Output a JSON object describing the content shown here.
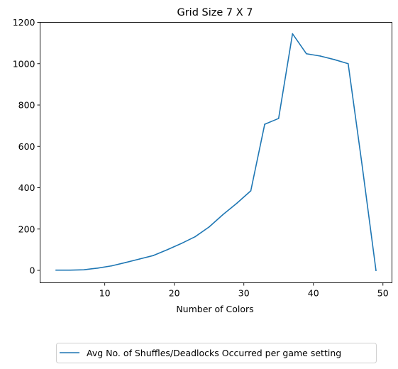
{
  "chart_data": {
    "type": "line",
    "title": "Grid Size 7 X 7",
    "xlabel": "Number of Colors",
    "ylabel": "",
    "xlim": [
      0.7,
      51.3
    ],
    "ylim": [
      -60,
      1200
    ],
    "xticks": [
      10,
      20,
      30,
      40,
      50
    ],
    "yticks": [
      0,
      200,
      400,
      600,
      800,
      1000,
      1200
    ],
    "grid": false,
    "legend_position": "bottom-center",
    "series": [
      {
        "name": "Avg No. of Shuffles/Deadlocks Occurred per game setting",
        "color": "#1f77b4",
        "x": [
          3,
          5,
          7,
          9,
          11,
          13,
          15,
          17,
          19,
          21,
          23,
          25,
          27,
          29,
          31,
          33,
          35,
          37,
          39,
          41,
          43,
          45,
          47,
          49
        ],
        "y": [
          1,
          1,
          3,
          11,
          22,
          38,
          55,
          72,
          100,
          130,
          163,
          210,
          270,
          325,
          385,
          707,
          735,
          1145,
          1048,
          1037,
          1020,
          1000,
          510,
          0
        ]
      }
    ]
  }
}
